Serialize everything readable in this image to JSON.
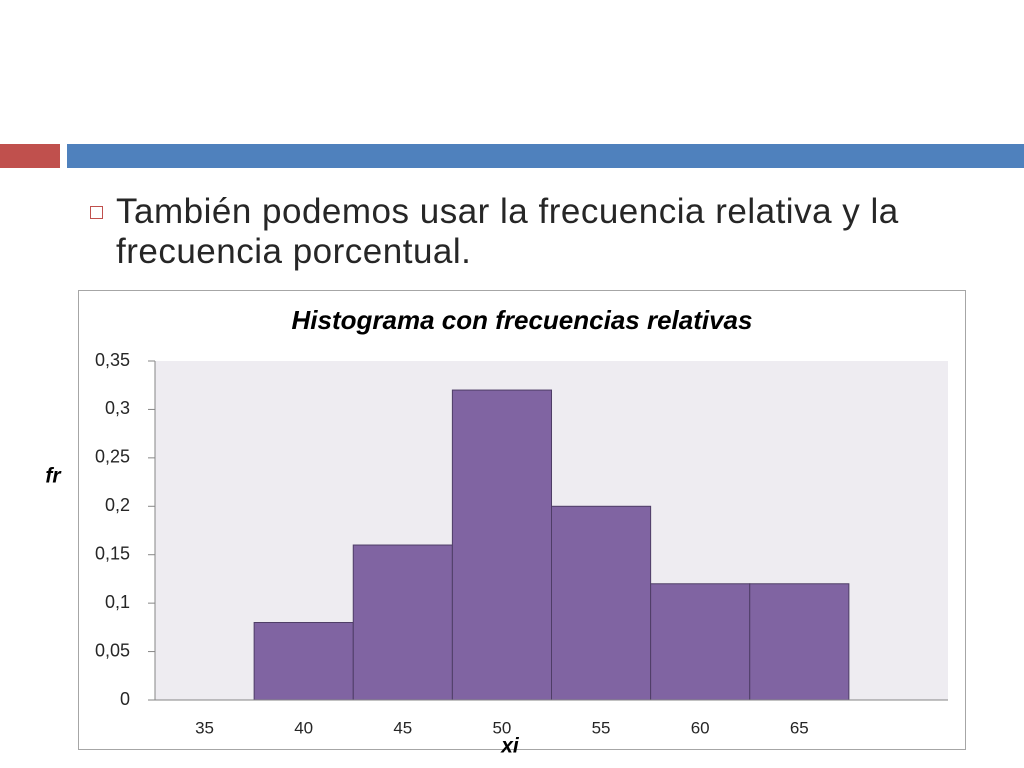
{
  "slide": {
    "header": {
      "accent_red": "#c0504d",
      "accent_blue": "#4f81bd"
    },
    "bullets": [
      {
        "icon": "hollow-square-bullet-icon",
        "color": "#c0504d",
        "text": "También podemos usar la frecuencia relativa y la frecuencia porcentual."
      }
    ]
  },
  "chart_data": {
    "type": "bar",
    "title": "Histograma con frecuencias relativas",
    "xlabel": "xi",
    "ylabel": "fr",
    "categories": [
      "35",
      "40",
      "45",
      "50",
      "55",
      "60",
      "65"
    ],
    "values": [
      0,
      0.08,
      0.16,
      0.32,
      0.2,
      0.12,
      0.12
    ],
    "ylim": [
      0,
      0.35
    ],
    "y_ticks": [
      {
        "value": 0,
        "label": "0"
      },
      {
        "value": 0.05,
        "label": "0,05"
      },
      {
        "value": 0.1,
        "label": "0,1"
      },
      {
        "value": 0.15,
        "label": "0,15"
      },
      {
        "value": 0.2,
        "label": "0,2"
      },
      {
        "value": 0.25,
        "label": "0,25"
      },
      {
        "value": 0.3,
        "label": "0,3"
      },
      {
        "value": 0.35,
        "label": "0,35"
      }
    ],
    "grid": false,
    "legend": "none",
    "colors": {
      "bar_fill": "#8064a2",
      "bar_edge": "#4e3d66",
      "plot_background": "#eeecf1"
    }
  }
}
